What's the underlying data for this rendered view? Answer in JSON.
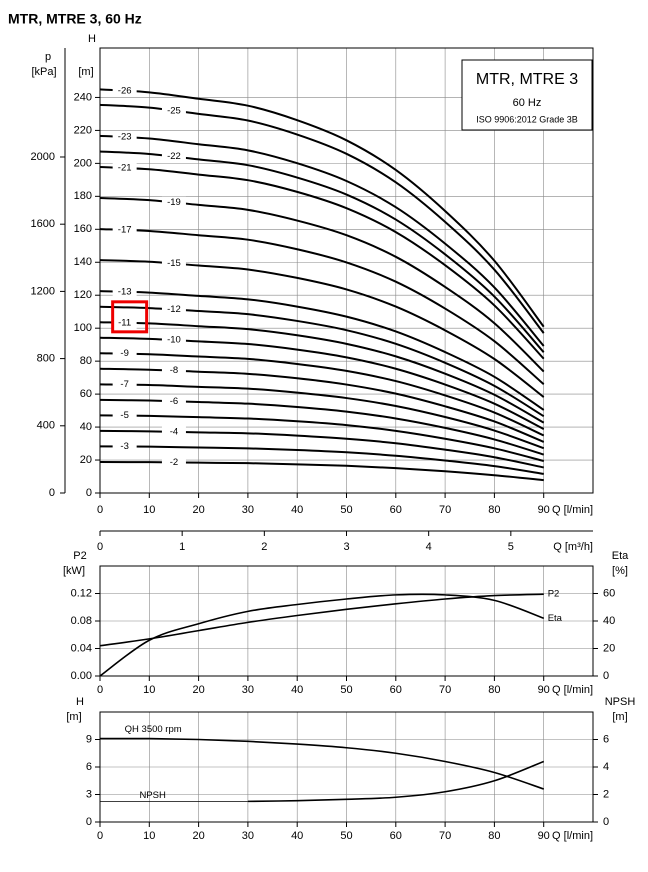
{
  "title": "MTR, MTRE 3, 60 Hz",
  "chart_data": [
    {
      "type": "line",
      "box_title": "MTR, MTRE 3",
      "box_subtitle": "60 Hz",
      "box_note": "ISO 9906:2012 Grade 3B",
      "x_label": "Q [l/min]",
      "x2_label": "Q [m³/h]",
      "y_label": "H",
      "y_unit": "[m]",
      "y2_label": "p",
      "y2_unit": "[kPa]",
      "x": [
        0,
        10,
        20,
        30,
        40,
        50,
        60,
        70,
        80,
        90
      ],
      "xlim": [
        0,
        100
      ],
      "xticks": [
        0,
        10,
        20,
        30,
        40,
        50,
        60,
        70,
        80,
        90
      ],
      "x2lim": [
        0,
        6
      ],
      "x2ticks": [
        0,
        1,
        2,
        3,
        4,
        5
      ],
      "ylim": [
        0,
        270
      ],
      "yticks": [
        0,
        20,
        40,
        60,
        80,
        100,
        120,
        140,
        160,
        180,
        200,
        220,
        240
      ],
      "y2lim": [
        0,
        2648.7
      ],
      "y2ticks": [
        0,
        400,
        800,
        1200,
        1600,
        2000
      ],
      "grid": true,
      "color": "#000000",
      "series": [
        {
          "name": "-26",
          "values": [
            244.9,
            243.1,
            239.2,
            235,
            226.2,
            214,
            196,
            171.1,
            140.9,
            100.9
          ]
        },
        {
          "name": "-25",
          "values": [
            235.5,
            233.8,
            230,
            226,
            217.5,
            205.8,
            188.5,
            164.5,
            135.5,
            97
          ]
        },
        {
          "name": "-23",
          "values": [
            216.7,
            215.1,
            211.6,
            207.9,
            200.1,
            189.3,
            173.4,
            151.3,
            124.7,
            89.2
          ]
        },
        {
          "name": "-22",
          "values": [
            207.2,
            205.7,
            202.4,
            198.9,
            191.4,
            181.1,
            165.9,
            144.8,
            119.2,
            85.4
          ]
        },
        {
          "name": "-21",
          "values": [
            197.8,
            196.4,
            193.2,
            189.8,
            182.7,
            172.8,
            158.3,
            138.2,
            113.8,
            81.5
          ]
        },
        {
          "name": "-19",
          "values": [
            179,
            177.7,
            174.8,
            171.8,
            165.3,
            156.4,
            143.3,
            125,
            103,
            73.7
          ]
        },
        {
          "name": "-17",
          "values": [
            160.1,
            159,
            156.4,
            153.7,
            147.9,
            139.9,
            128.2,
            111.9,
            92.1,
            66
          ]
        },
        {
          "name": "-15",
          "values": [
            141.3,
            140.3,
            138,
            135.6,
            130.5,
            123.5,
            113.1,
            98.7,
            81.3,
            58.2
          ]
        },
        {
          "name": "-13",
          "values": [
            122.5,
            121.6,
            119.6,
            117.5,
            113.1,
            107,
            98,
            85.5,
            70.5,
            50.4
          ]
        },
        {
          "name": "-12",
          "values": [
            113,
            112.2,
            110.4,
            108.5,
            104.4,
            98.8,
            90.5,
            79,
            65,
            46.6
          ]
        },
        {
          "name": "-11",
          "values": [
            103.6,
            102.9,
            101.2,
            99.4,
            95.7,
            90.5,
            82.9,
            72.4,
            59.6,
            42.7
          ]
        },
        {
          "name": "-10",
          "values": [
            94.2,
            93.5,
            92,
            90.4,
            87,
            82.3,
            75.4,
            65.8,
            54.2,
            38.8
          ]
        },
        {
          "name": "-9",
          "values": [
            84.8,
            84.2,
            82.8,
            81.4,
            78.3,
            74.1,
            67.9,
            59.2,
            48.8,
            34.9
          ]
        },
        {
          "name": "-8",
          "values": [
            75.4,
            74.8,
            73.6,
            72.3,
            69.6,
            65.8,
            60.3,
            52.6,
            43.4,
            31
          ]
        },
        {
          "name": "-7",
          "values": [
            65.9,
            65.5,
            64.4,
            63.3,
            60.9,
            57.6,
            52.8,
            46.1,
            37.9,
            27.2
          ]
        },
        {
          "name": "-6",
          "values": [
            56.5,
            56.1,
            55.2,
            54.2,
            52.2,
            49.4,
            45.2,
            39.5,
            32.5,
            23.3
          ]
        },
        {
          "name": "-5",
          "values": [
            47.1,
            46.8,
            46,
            45.2,
            43.5,
            41.2,
            37.7,
            32.9,
            27.1,
            19.4
          ]
        },
        {
          "name": "-4",
          "values": [
            37.7,
            37.4,
            36.8,
            36.2,
            34.8,
            32.9,
            30.2,
            26.3,
            21.7,
            15.5
          ]
        },
        {
          "name": "-3",
          "values": [
            28.3,
            28.1,
            27.6,
            27.1,
            26.1,
            24.7,
            22.6,
            19.7,
            16.3,
            11.6
          ]
        },
        {
          "name": "-2",
          "values": [
            18.8,
            18.7,
            18.4,
            18.1,
            17.4,
            16.5,
            15.1,
            13.2,
            10.8,
            7.8
          ]
        }
      ]
    },
    {
      "type": "line",
      "x_label": "Q [l/min]",
      "y_label": "P2",
      "y_unit": "[kW]",
      "y2_label": "Eta",
      "y2_unit": "[%]",
      "x": [
        0,
        10,
        20,
        30,
        40,
        50,
        60,
        70,
        80,
        90
      ],
      "xlim": [
        0,
        100
      ],
      "xticks": [
        0,
        10,
        20,
        30,
        40,
        50,
        60,
        70,
        80,
        90
      ],
      "ylim": [
        0,
        0.16
      ],
      "yticks": [
        {
          "value": 0,
          "label": "0.00"
        },
        {
          "value": 0.04,
          "label": "0.04"
        },
        {
          "value": 0.08,
          "label": "0.08"
        },
        {
          "value": 0.12,
          "label": "0.12"
        }
      ],
      "y2lim": [
        0,
        80
      ],
      "y2ticks": [
        0,
        20,
        40,
        60
      ],
      "grid": true,
      "color": "#000000",
      "series": [
        {
          "name": "P2",
          "values": [
            0.044,
            0.054,
            0.066,
            0.078,
            0.088,
            0.097,
            0.105,
            0.112,
            0.117,
            0.119
          ]
        },
        {
          "name": "Eta",
          "axis": "y2",
          "values": [
            0,
            26,
            38,
            47,
            52,
            56,
            59,
            59,
            55,
            42
          ]
        }
      ]
    },
    {
      "type": "line",
      "x_label": "Q [l/min]",
      "y_label": "H",
      "y_unit": "[m]",
      "y2_label": "NPSH",
      "y2_unit": "[m]",
      "x": [
        0,
        10,
        20,
        30,
        40,
        50,
        60,
        70,
        80,
        90
      ],
      "xlim": [
        0,
        100
      ],
      "xticks": [
        0,
        10,
        20,
        30,
        40,
        50,
        60,
        70,
        80,
        90
      ],
      "ylim": [
        0,
        12
      ],
      "yticks": [
        0,
        3,
        6,
        9
      ],
      "y2lim": [
        0,
        8
      ],
      "y2ticks": [
        0,
        2,
        4,
        6
      ],
      "grid": true,
      "color": "#000000",
      "series": [
        {
          "name": "QH 3500 rpm",
          "values": [
            9.1,
            9.1,
            9.0,
            8.8,
            8.5,
            8.1,
            7.5,
            6.6,
            5.4,
            3.6
          ]
        },
        {
          "name": "NPSH",
          "axis": "y2",
          "values": [
            null,
            null,
            null,
            1.5,
            1.55,
            1.65,
            1.8,
            2.2,
            3.0,
            4.4
          ]
        }
      ]
    }
  ]
}
